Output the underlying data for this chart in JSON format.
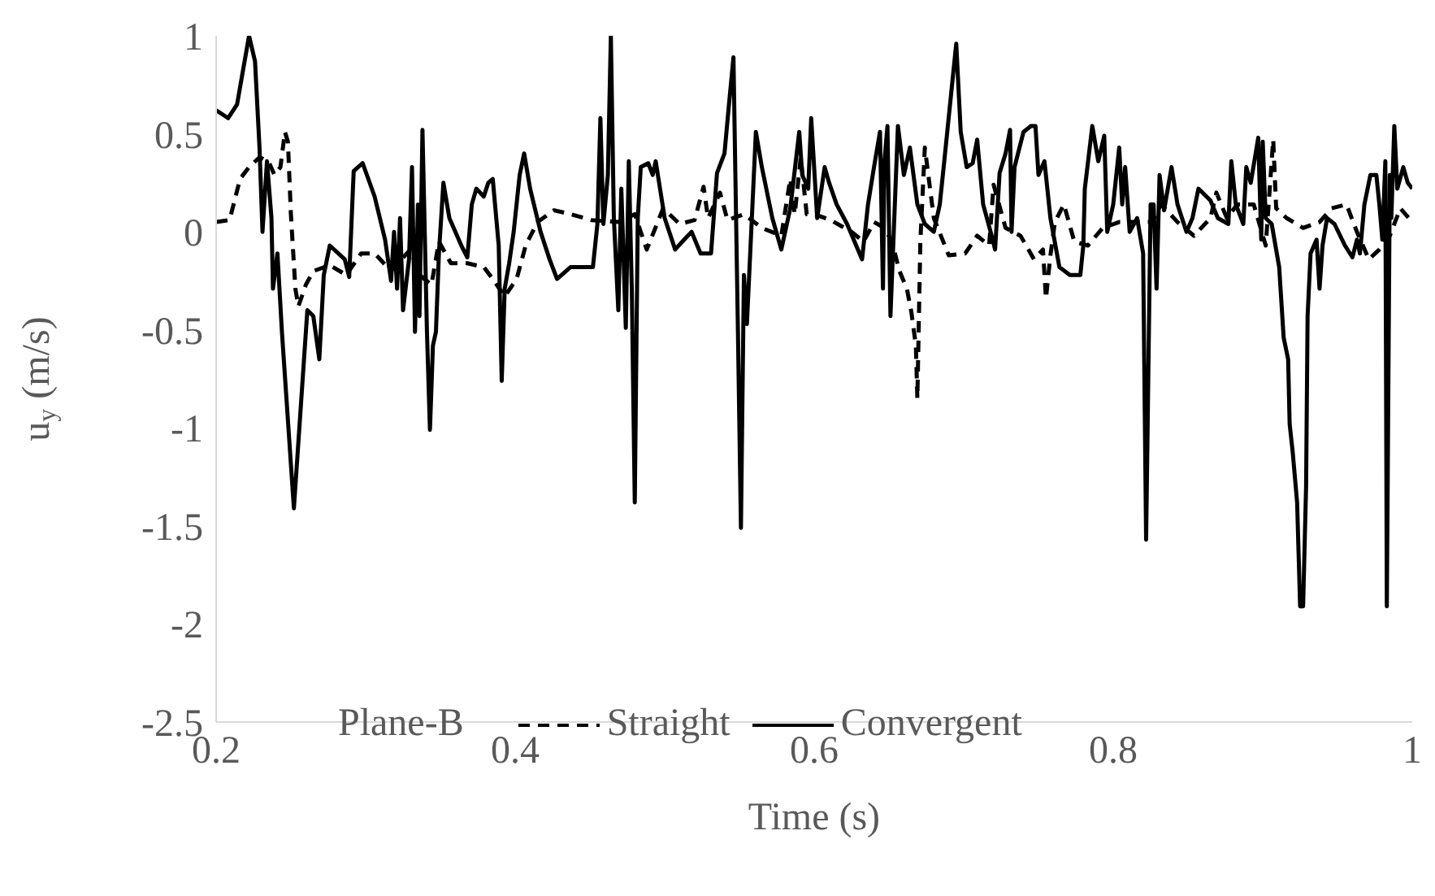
{
  "chart_data": {
    "type": "line",
    "xlabel": "Time (s)",
    "ylabel": "u$_{y}$ (m/s)",
    "xlim": [
      0.2,
      1
    ],
    "xticks": [
      0.2,
      0.4,
      0.6,
      0.8,
      1
    ],
    "ylim": [
      -2.5,
      1
    ],
    "yticks": [
      -2.5,
      -2,
      -1.5,
      -1,
      -0.5,
      0,
      0.5,
      1
    ],
    "grid": false,
    "legend": "bottom",
    "annotations": [
      "Plane-B"
    ],
    "series": [
      {
        "name": "Straight",
        "color": "#000000",
        "line_style": "dashed",
        "x": [
          0.2,
          0.209,
          0.211,
          0.216,
          0.222,
          0.229,
          0.235,
          0.239,
          0.243,
          0.246,
          0.248,
          0.25,
          0.253,
          0.255,
          0.26,
          0.265,
          0.276,
          0.287,
          0.297,
          0.306,
          0.317,
          0.324,
          0.33,
          0.336,
          0.344,
          0.349,
          0.357,
          0.368,
          0.379,
          0.385,
          0.393,
          0.401,
          0.407,
          0.415,
          0.426,
          0.437,
          0.451,
          0.469,
          0.48,
          0.488,
          0.499,
          0.51,
          0.52,
          0.526,
          0.529,
          0.537,
          0.542,
          0.553,
          0.565,
          0.578,
          0.584,
          0.587,
          0.591,
          0.595,
          0.6,
          0.611,
          0.625,
          0.633,
          0.64,
          0.647,
          0.652,
          0.657,
          0.662,
          0.665,
          0.668,
          0.669,
          0.671,
          0.674,
          0.68,
          0.69,
          0.701,
          0.709,
          0.717,
          0.72,
          0.728,
          0.738,
          0.747,
          0.753,
          0.755,
          0.758,
          0.761,
          0.767,
          0.774,
          0.783,
          0.793,
          0.804,
          0.815,
          0.826,
          0.832,
          0.843,
          0.854,
          0.865,
          0.869,
          0.876,
          0.883,
          0.894,
          0.902,
          0.907,
          0.909,
          0.916,
          0.927,
          0.938,
          0.946,
          0.956,
          0.963,
          0.971,
          0.978,
          0.985,
          0.992,
          1.0
        ],
        "values": [
          0.05,
          0.06,
          0.12,
          0.27,
          0.33,
          0.38,
          0.36,
          0.29,
          0.33,
          0.51,
          0.46,
          0.09,
          -0.29,
          -0.38,
          -0.27,
          -0.2,
          -0.17,
          -0.22,
          -0.11,
          -0.11,
          -0.2,
          -0.14,
          -0.09,
          -0.22,
          -0.27,
          -0.05,
          -0.16,
          -0.16,
          -0.18,
          -0.24,
          -0.33,
          -0.24,
          -0.07,
          0.05,
          0.11,
          0.09,
          0.06,
          0.05,
          0.09,
          -0.09,
          0.12,
          0.04,
          0.06,
          0.23,
          0.07,
          0.2,
          0.06,
          0.09,
          0.02,
          -0.02,
          0.27,
          0.09,
          0.38,
          0.09,
          0.09,
          0.06,
          0,
          -0.05,
          0.05,
          0.02,
          -0.05,
          -0.2,
          -0.29,
          -0.41,
          -0.58,
          -0.85,
          -0.05,
          0.43,
          0.07,
          -0.12,
          -0.11,
          -0.02,
          -0.07,
          0.24,
          0.02,
          -0.02,
          -0.14,
          -0.09,
          -0.34,
          -0.12,
          0.05,
          0.14,
          -0.05,
          -0.07,
          0.02,
          0.05,
          0.05,
          0.05,
          0.14,
          0.05,
          -0.02,
          0.07,
          0.2,
          0.07,
          0.14,
          0.14,
          -0.07,
          0.47,
          0.12,
          0.07,
          0.02,
          0.05,
          0.12,
          0.14,
          0,
          -0.14,
          -0.09,
          -0.02,
          0.12,
          0.05
        ]
      },
      {
        "name": "Convergent",
        "color": "#000000",
        "line_style": "solid",
        "x": [
          0.2,
          0.208,
          0.214,
          0.222,
          0.226,
          0.229,
          0.231,
          0.234,
          0.237,
          0.238,
          0.241,
          0.244,
          0.252,
          0.261,
          0.265,
          0.269,
          0.272,
          0.276,
          0.286,
          0.289,
          0.292,
          0.298,
          0.306,
          0.313,
          0.317,
          0.319,
          0.321,
          0.323,
          0.325,
          0.329,
          0.331,
          0.333,
          0.335,
          0.336,
          0.338,
          0.341,
          0.343,
          0.345,
          0.347,
          0.349,
          0.352,
          0.356,
          0.364,
          0.368,
          0.371,
          0.374,
          0.379,
          0.382,
          0.385,
          0.389,
          0.391,
          0.393,
          0.396,
          0.399,
          0.403,
          0.406,
          0.41,
          0.417,
          0.423,
          0.428,
          0.437,
          0.452,
          0.455,
          0.457,
          0.459,
          0.462,
          0.464,
          0.466,
          0.469,
          0.471,
          0.474,
          0.476,
          0.478,
          0.48,
          0.482,
          0.484,
          0.489,
          0.492,
          0.494,
          0.5,
          0.507,
          0.513,
          0.518,
          0.524,
          0.531,
          0.535,
          0.54,
          0.543,
          0.546,
          0.549,
          0.551,
          0.553,
          0.555,
          0.561,
          0.565,
          0.572,
          0.578,
          0.584,
          0.59,
          0.592,
          0.596,
          0.598,
          0.602,
          0.607,
          0.61,
          0.615,
          0.622,
          0.632,
          0.636,
          0.64,
          0.644,
          0.646,
          0.647,
          0.649,
          0.651,
          0.656,
          0.66,
          0.664,
          0.669,
          0.674,
          0.68,
          0.684,
          0.687,
          0.695,
          0.698,
          0.702,
          0.706,
          0.709,
          0.713,
          0.718,
          0.721,
          0.724,
          0.728,
          0.731,
          0.732,
          0.734,
          0.74,
          0.745,
          0.748,
          0.75,
          0.754,
          0.758,
          0.764,
          0.771,
          0.778,
          0.78,
          0.781,
          0.786,
          0.79,
          0.794,
          0.796,
          0.8,
          0.804,
          0.806,
          0.808,
          0.811,
          0.816,
          0.82,
          0.822,
          0.825,
          0.827,
          0.829,
          0.831,
          0.834,
          0.839,
          0.843,
          0.849,
          0.853,
          0.857,
          0.865,
          0.87,
          0.877,
          0.879,
          0.882,
          0.887,
          0.889,
          0.892,
          0.897,
          0.899,
          0.9,
          0.902,
          0.906,
          0.911,
          0.914,
          0.917,
          0.918,
          0.92,
          0.923,
          0.925,
          0.927,
          0.929,
          0.93,
          0.932,
          0.936,
          0.938,
          0.94,
          0.943,
          0.948,
          0.955,
          0.96,
          0.963,
          0.965,
          0.968,
          0.972,
          0.976,
          0.978,
          0.98,
          0.982,
          0.983,
          0.985,
          0.986,
          0.988,
          0.99,
          0.994,
          0.997,
          1.0
        ],
        "values": [
          0.62,
          0.58,
          0.65,
          1.0,
          0.87,
          0.43,
          0,
          0.36,
          0.07,
          -0.29,
          -0.11,
          -0.51,
          -1.41,
          -0.4,
          -0.43,
          -0.65,
          -0.22,
          -0.07,
          -0.14,
          -0.23,
          0.31,
          0.35,
          0.18,
          -0.04,
          -0.25,
          0,
          -0.29,
          0.07,
          -0.4,
          -0.14,
          0.33,
          -0.51,
          0.14,
          -0.43,
          0.52,
          -0.51,
          -1.01,
          -0.58,
          -0.51,
          -0.11,
          0.25,
          0.07,
          -0.07,
          -0.13,
          0.14,
          0.22,
          0.18,
          0.25,
          0.27,
          -0.07,
          -0.76,
          -0.29,
          -0.16,
          0,
          0.29,
          0.4,
          0.22,
          0,
          -0.14,
          -0.24,
          -0.18,
          -0.18,
          0.04,
          0.58,
          0.04,
          0.29,
          1.0,
          0.07,
          -0.4,
          0.22,
          -0.49,
          0.36,
          -0.29,
          -1.38,
          0.07,
          0.33,
          0.35,
          0.29,
          0.36,
          0.07,
          -0.09,
          -0.04,
          0,
          -0.11,
          -0.11,
          0.3,
          0.4,
          0.65,
          0.89,
          -0.51,
          -1.51,
          -0.22,
          -0.47,
          0.51,
          0.33,
          0.07,
          -0.09,
          0.12,
          0.51,
          0.29,
          0.22,
          0.58,
          0.07,
          0.33,
          0.25,
          0.14,
          0.04,
          -0.14,
          0.14,
          0.33,
          0.51,
          -0.29,
          0.36,
          0.54,
          -0.43,
          0.54,
          0.29,
          0.43,
          0.14,
          0.04,
          0,
          0.14,
          0.36,
          0.96,
          0.51,
          0.33,
          0.35,
          0.47,
          0.14,
          0,
          -0.09,
          0.3,
          0.4,
          0.52,
          0,
          0.33,
          0.51,
          0.54,
          0.54,
          0.29,
          0.36,
          0.07,
          -0.18,
          -0.22,
          -0.22,
          -0.07,
          0.22,
          0.54,
          0.36,
          0.49,
          0,
          0.14,
          0.43,
          0.14,
          0.33,
          0,
          0.07,
          -0.11,
          -1.57,
          0.14,
          0.14,
          -0.29,
          0.29,
          0.11,
          0.33,
          0.14,
          0,
          0.07,
          0.22,
          0.16,
          0.07,
          0.04,
          0.36,
          0.14,
          0.04,
          0.33,
          0.25,
          0.48,
          -0.04,
          0.46,
          0.07,
          0.04,
          -0.18,
          -0.54,
          -0.65,
          -0.98,
          -1.12,
          -1.38,
          -1.91,
          -1.91,
          -1.3,
          -0.43,
          -0.11,
          -0.04,
          -0.29,
          -0.07,
          0.07,
          0.04,
          -0.07,
          -0.13,
          -0.04,
          -0.11,
          0.14,
          0.29,
          0.29,
          0.14,
          -0.04,
          0.36,
          -1.91,
          0.29,
          0.07,
          0.54,
          0.22,
          0.33,
          0.25,
          0.22
        ]
      }
    ]
  }
}
